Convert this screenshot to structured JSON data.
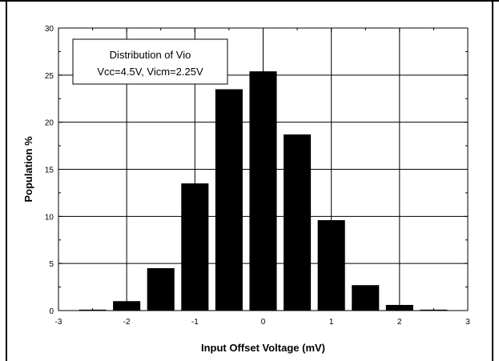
{
  "chart_data": {
    "type": "bar",
    "x": [
      -2.5,
      -2.0,
      -1.5,
      -1.0,
      -0.5,
      0.0,
      0.5,
      1.0,
      1.5,
      2.0,
      2.5
    ],
    "values": [
      0.1,
      1.0,
      4.5,
      13.5,
      23.5,
      25.4,
      18.7,
      9.6,
      2.7,
      0.6,
      0.1
    ],
    "xlabel": "Input Offset Voltage   (mV)",
    "ylabel": "Population %",
    "xlim": [
      -3,
      3
    ],
    "ylim": [
      0,
      30
    ],
    "xticks": [
      "-3",
      "-2",
      "-1",
      "0",
      "1",
      "2",
      "3"
    ],
    "yticks": [
      "0",
      "5",
      "10",
      "15",
      "20",
      "25",
      "30"
    ],
    "grid": true,
    "bar_color": "#000000",
    "annotation": {
      "line1": "Distribution of Vio",
      "line2": "Vcc=4.5V, Vicm=2.25V",
      "placement": "top-left"
    }
  }
}
